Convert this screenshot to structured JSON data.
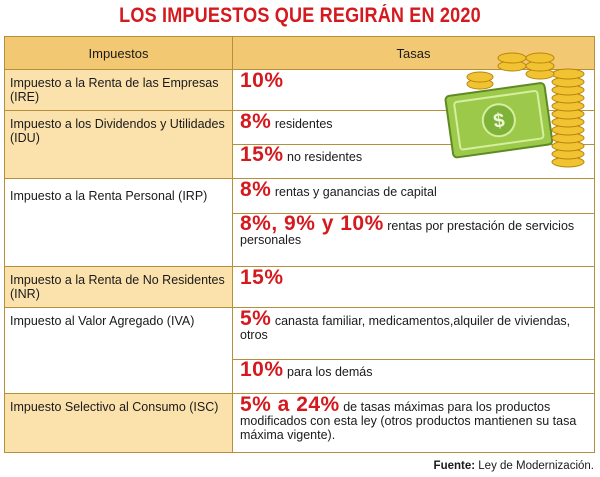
{
  "title": "LOS IMPUESTOS QUE REGIRÁN EN 2020",
  "headers": {
    "impuestos": "Impuestos",
    "tasas": "Tasas"
  },
  "rows": [
    {
      "name": "Impuesto a la Renta de las Empresas (IRE)",
      "rates": [
        {
          "big": "10%",
          "text": ""
        }
      ]
    },
    {
      "name": "Impuesto a los Dividendos y Utilidades (IDU)",
      "rates": [
        {
          "big": "8%",
          "text": "residentes"
        },
        {
          "big": "15%",
          "text": "no residentes"
        }
      ]
    },
    {
      "name": "Impuesto a la Renta Personal (IRP)",
      "rates": [
        {
          "big": "8%",
          "text": "rentas y ganancias de capital"
        },
        {
          "big": "8%, 9% y 10%",
          "text": "rentas por prestación de servicios personales"
        }
      ]
    },
    {
      "name": "Impuesto a la Renta de No Residentes (INR)",
      "rates": [
        {
          "big": "15%",
          "text": ""
        }
      ]
    },
    {
      "name": "Impuesto al Valor Agregado (IVA)",
      "rates": [
        {
          "big": "5%",
          "text": "canasta familiar, medicamentos,alquiler de viviendas, otros"
        },
        {
          "big": "10%",
          "text": "para los demás"
        }
      ]
    },
    {
      "name": "Impuesto Selectivo al Consumo (ISC)",
      "rates": [
        {
          "big": "5% a 24%",
          "text": "de tasas máximas para los productos modificados con esta ley (otros productos mantienen su tasa máxima vigente)."
        }
      ]
    }
  ],
  "source": {
    "label": "Fuente:",
    "text": "Ley de Modernización."
  },
  "colors": {
    "accent": "#d41a1f",
    "header": "#f3c872",
    "shaded": "#fbe2ad"
  }
}
